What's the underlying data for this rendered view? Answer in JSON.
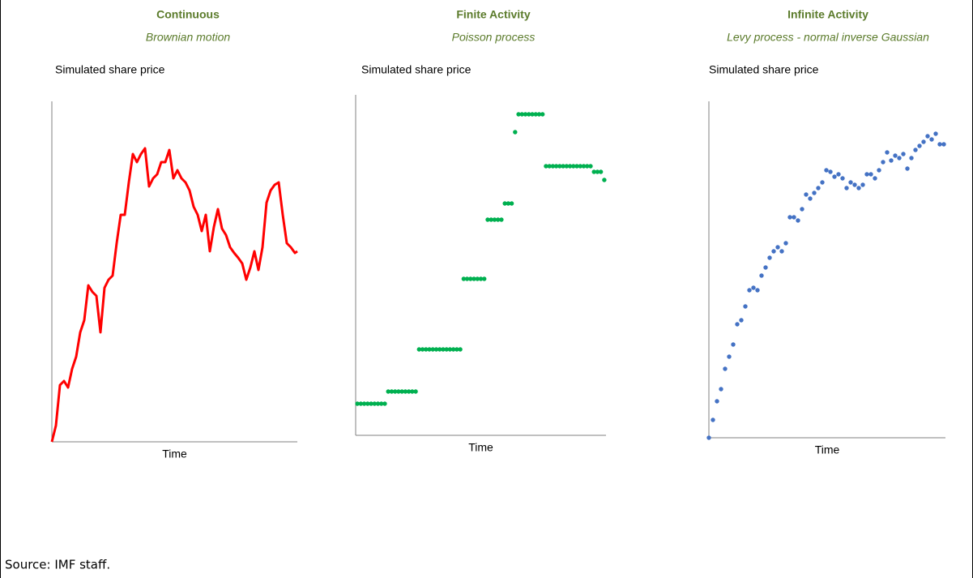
{
  "source": "Source: IMF staff.",
  "chart_data": [
    {
      "type": "line",
      "title": "Continuous",
      "subtitle": "Brownian motion",
      "y_label": "Simulated share price",
      "x_label": "Time",
      "color": "#ff0000",
      "xlim": [
        0,
        60.6
      ],
      "ylim": [
        0,
        420
      ],
      "x": [
        0,
        1,
        2,
        3,
        4,
        5,
        6,
        7,
        8,
        9,
        10,
        11,
        12,
        13,
        14,
        15,
        16,
        17,
        18,
        19,
        20,
        21,
        22,
        23,
        24,
        25,
        26,
        27,
        28,
        29,
        30,
        31,
        32,
        33,
        34,
        35,
        36,
        37,
        38,
        39,
        40,
        41,
        42,
        43,
        44,
        45,
        46,
        47,
        48,
        49,
        50,
        51,
        52,
        53,
        54,
        55,
        56,
        57,
        58,
        59,
        60,
        60.6
      ],
      "values": [
        0,
        20,
        70,
        75,
        67,
        90,
        105,
        135,
        150,
        193,
        185,
        180,
        135,
        190,
        200,
        205,
        245,
        280,
        280,
        320,
        355,
        345,
        355,
        362,
        315,
        325,
        330,
        345,
        345,
        360,
        325,
        335,
        325,
        320,
        310,
        290,
        280,
        260,
        280,
        235,
        265,
        287,
        263,
        255,
        240,
        233,
        227,
        220,
        200,
        215,
        235,
        212,
        240,
        295,
        310,
        317,
        320,
        280,
        245,
        240,
        233,
        235
      ]
    },
    {
      "type": "scatter",
      "title": "Finite Activity",
      "subtitle": "Poisson process",
      "y_label": "Simulated share price",
      "x_label": "Time",
      "color": "#00b050",
      "xlim": [
        -0.5,
        72.5
      ],
      "ylim": [
        0,
        420
      ],
      "x": [
        0,
        1,
        2,
        3,
        4,
        5,
        6,
        7,
        8,
        9,
        10,
        11,
        12,
        13,
        14,
        15,
        16,
        17,
        18,
        19,
        20,
        21,
        22,
        23,
        24,
        25,
        26,
        27,
        28,
        29,
        30,
        31,
        32,
        33,
        34,
        35,
        36,
        37,
        38,
        39,
        40,
        41,
        42,
        43,
        44,
        45,
        46,
        47,
        48,
        49,
        50,
        51,
        52,
        53,
        54,
        55,
        56,
        57,
        58,
        59,
        60,
        61,
        62,
        63,
        64,
        65,
        66,
        67,
        68,
        69,
        70,
        71,
        72
      ],
      "values": [
        39,
        39,
        39,
        39,
        39,
        39,
        39,
        39,
        39,
        54,
        54,
        54,
        54,
        54,
        54,
        54,
        54,
        54,
        106,
        106,
        106,
        106,
        106,
        106,
        106,
        106,
        106,
        106,
        106,
        106,
        106,
        193,
        193,
        193,
        193,
        193,
        193,
        193,
        266,
        266,
        266,
        266,
        266,
        286,
        286,
        286,
        374,
        396,
        396,
        396,
        396,
        396,
        396,
        396,
        396,
        332,
        332,
        332,
        332,
        332,
        332,
        332,
        332,
        332,
        332,
        332,
        332,
        332,
        332,
        325,
        325,
        325,
        315
      ]
    },
    {
      "type": "scatter",
      "title": "Infinite Activity",
      "subtitle": "Levy process - normal inverse Gaussian",
      "y_label": "Simulated share price",
      "x_label": "Time",
      "color": "#4472c4",
      "xlim": [
        0,
        58.4
      ],
      "ylim": [
        0,
        415
      ],
      "x": [
        0,
        1,
        2,
        3,
        4,
        5,
        6,
        7,
        8,
        9,
        10,
        11,
        12,
        13,
        14,
        15,
        16,
        17,
        18,
        19,
        20,
        21,
        22,
        23,
        24,
        25,
        26,
        27,
        28,
        29,
        30,
        31,
        32,
        33,
        34,
        35,
        36,
        37,
        38,
        39,
        40,
        41,
        42,
        43,
        44,
        45,
        46,
        47,
        48,
        49,
        50,
        51,
        52,
        53,
        54,
        55,
        56,
        57,
        58
      ],
      "values": [
        0,
        22,
        45,
        60,
        85,
        100,
        115,
        140,
        145,
        162,
        182,
        185,
        182,
        200,
        210,
        222,
        230,
        235,
        230,
        240,
        272,
        272,
        268,
        282,
        300,
        295,
        302,
        308,
        315,
        330,
        328,
        322,
        325,
        320,
        308,
        315,
        312,
        308,
        312,
        325,
        325,
        320,
        330,
        340,
        352,
        342,
        348,
        345,
        350,
        332,
        345,
        355,
        360,
        365,
        372,
        368,
        375,
        362,
        362
      ]
    }
  ]
}
